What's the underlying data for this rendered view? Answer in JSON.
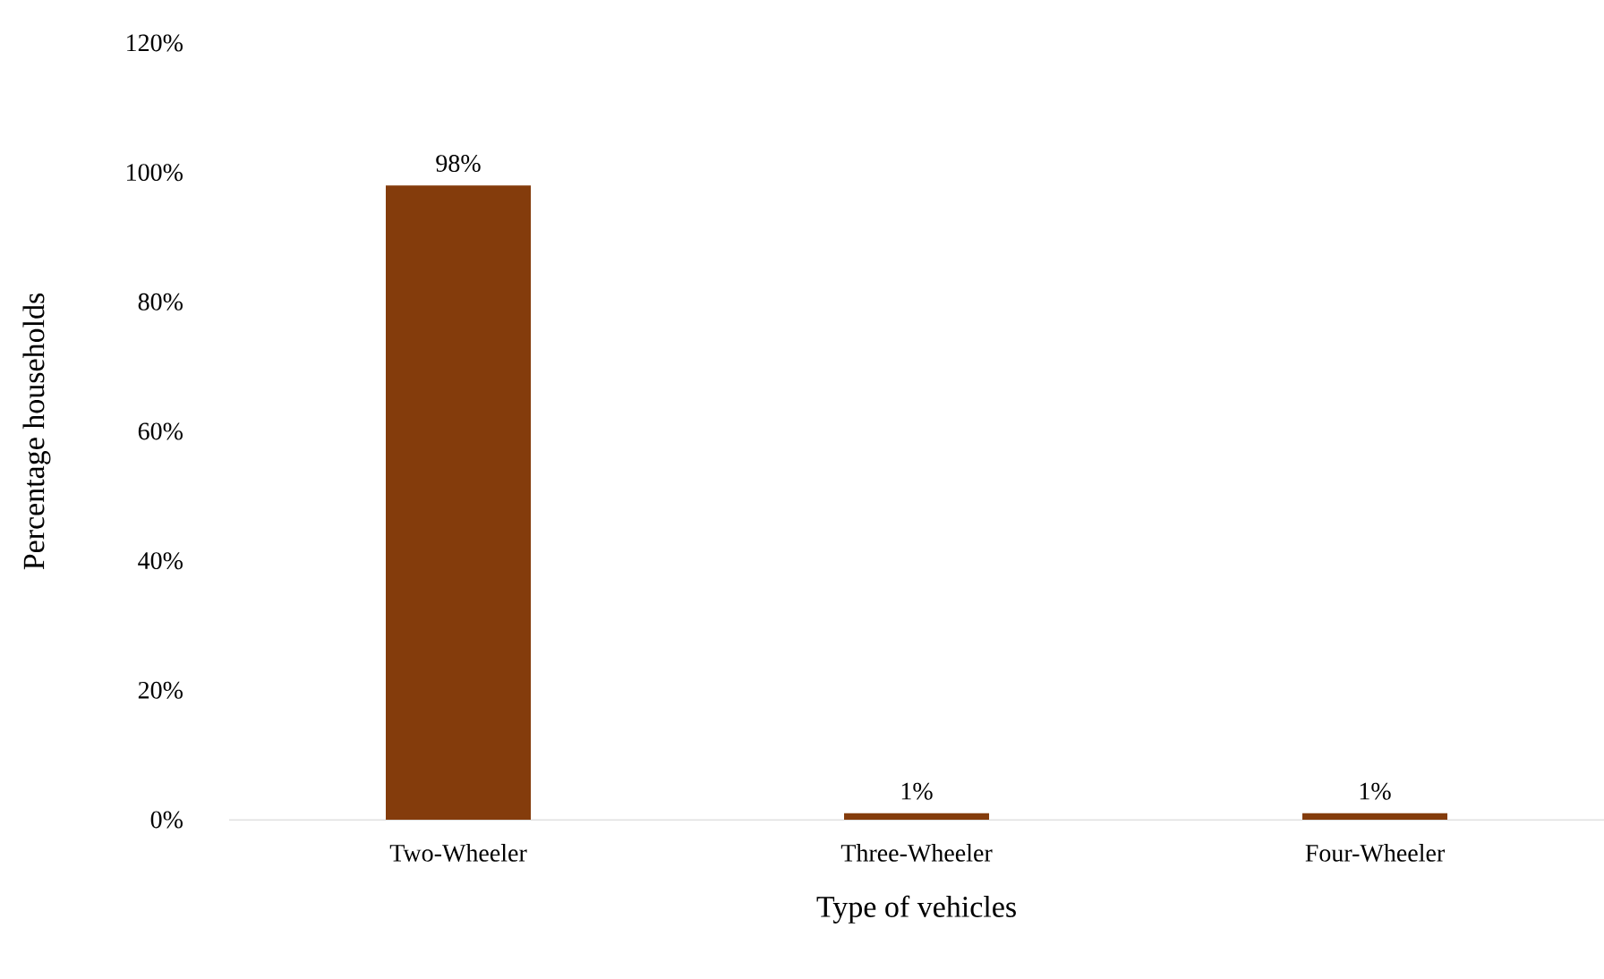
{
  "chart_data": {
    "type": "bar",
    "xlabel": "Type of vehicles",
    "ylabel": "Percentage households",
    "categories": [
      "Two-Wheeler",
      "Three-Wheeler",
      "Four-Wheeler"
    ],
    "values": [
      98,
      1,
      1
    ],
    "value_labels": [
      "98%",
      "1%",
      "1%"
    ],
    "color": "#843c0c",
    "ylim": [
      0,
      120
    ],
    "yticks": [
      {
        "value": 0,
        "label": "0%"
      },
      {
        "value": 20,
        "label": "20%"
      },
      {
        "value": 40,
        "label": "40%"
      },
      {
        "value": 60,
        "label": "60%"
      },
      {
        "value": 80,
        "label": "80%"
      },
      {
        "value": 100,
        "label": "100%"
      },
      {
        "value": 120,
        "label": "120%"
      }
    ],
    "grid": false
  }
}
